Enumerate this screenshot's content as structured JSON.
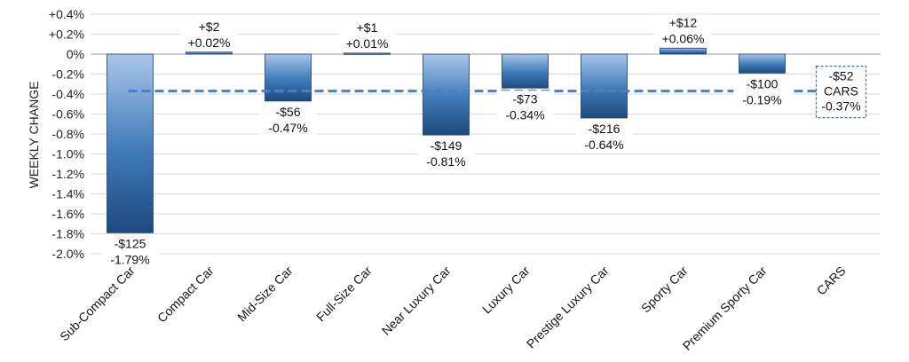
{
  "chart_data": {
    "type": "bar",
    "title": "",
    "xlabel": "",
    "ylabel": "WEEKLY CHANGE",
    "ylim": [
      -2.0,
      0.4
    ],
    "yticks": [
      "+0.4%",
      "+0.2%",
      "0%",
      "-0.2%",
      "-0.4%",
      "-0.6%",
      "-0.8%",
      "-1.0%",
      "-1.2%",
      "-1.4%",
      "-1.6%",
      "-1.8%",
      "-2.0%"
    ],
    "ytick_values": [
      0.4,
      0.2,
      0,
      -0.2,
      -0.4,
      -0.6,
      -0.8,
      -1.0,
      -1.2,
      -1.4,
      -1.6,
      -1.8,
      -2.0
    ],
    "grid": true,
    "categories": [
      "Sub-Compact Car",
      "Compact Car",
      "Mid-Size Car",
      "Full-Size Car",
      "Near Luxury Car",
      "Luxury Car",
      "Prestige Luxury Car",
      "Sporty Car",
      "Premium Sporty Car",
      "CARS"
    ],
    "values": [
      -1.79,
      0.02,
      -0.47,
      0.01,
      -0.81,
      -0.34,
      -0.64,
      0.06,
      -0.19,
      -0.37
    ],
    "dollar_labels": [
      "-$125",
      "+$2",
      "-$56",
      "+$1",
      "-$149",
      "-$73",
      "-$216",
      "+$12",
      "-$100",
      "-$52"
    ],
    "percent_labels": [
      "-1.79%",
      "+0.02%",
      "-0.47%",
      "+0.01%",
      "-0.81%",
      "-0.34%",
      "-0.64%",
      "+0.06%",
      "-0.19%",
      "-0.37%"
    ],
    "reference_line": {
      "value": -0.37,
      "label_lines": [
        "-$52",
        "CARS",
        "-0.37%"
      ]
    },
    "colors": {
      "bar_light": "#a9c6e8",
      "bar_mid": "#3f79b8",
      "bar_dark": "#1d4a7e",
      "reference": "#4a7fc4",
      "grid": "#d9d9d9"
    }
  }
}
